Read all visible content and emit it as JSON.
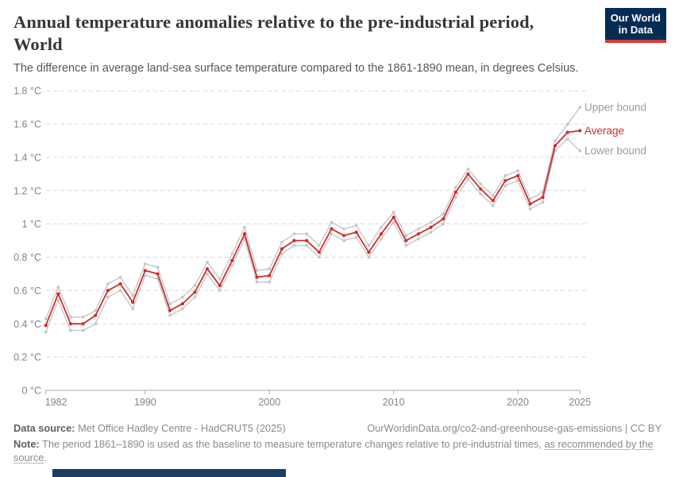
{
  "header": {
    "title_line1": "Annual temperature anomalies relative to the pre-industrial period,",
    "title_line2": "World",
    "subtitle": "The difference in average land-sea surface temperature compared to the 1861-1890 mean, in degrees Celsius.",
    "logo": {
      "line1": "Our World",
      "line2": "in Data"
    }
  },
  "chart_data": {
    "type": "line",
    "title": "Annual temperature anomalies relative to the pre-industrial period, World",
    "unit": "°C",
    "xlim": [
      1982,
      2025
    ],
    "ylim": [
      0,
      1.8
    ],
    "grid": "dashed-horizontal",
    "legend_position": "right-of-line-end",
    "x": [
      1982,
      1983,
      1984,
      1985,
      1986,
      1987,
      1988,
      1989,
      1990,
      1991,
      1992,
      1993,
      1994,
      1995,
      1996,
      1997,
      1998,
      1999,
      2000,
      2001,
      2002,
      2003,
      2004,
      2005,
      2006,
      2007,
      2008,
      2009,
      2010,
      2011,
      2012,
      2013,
      2014,
      2015,
      2016,
      2017,
      2018,
      2019,
      2020,
      2021,
      2022,
      2023,
      2024,
      2025
    ],
    "series": [
      {
        "name": "Upper bound",
        "color": "#c7c7c7",
        "label_color": "#9c9c9c",
        "values": [
          0.43,
          0.62,
          0.44,
          0.44,
          0.48,
          0.64,
          0.68,
          0.57,
          0.76,
          0.74,
          0.52,
          0.56,
          0.63,
          0.77,
          0.67,
          0.82,
          0.98,
          0.72,
          0.73,
          0.89,
          0.94,
          0.94,
          0.87,
          1.01,
          0.97,
          0.99,
          0.87,
          0.98,
          1.07,
          0.93,
          0.97,
          1.01,
          1.06,
          1.22,
          1.33,
          1.24,
          1.17,
          1.29,
          1.32,
          1.15,
          1.19,
          1.5,
          1.6,
          1.7
        ]
      },
      {
        "name": "Average",
        "color": "#cb2e2e",
        "label_color": "#cb2e2e",
        "values": [
          0.39,
          0.58,
          0.4,
          0.4,
          0.45,
          0.6,
          0.64,
          0.53,
          0.72,
          0.7,
          0.48,
          0.52,
          0.59,
          0.73,
          0.63,
          0.78,
          0.94,
          0.68,
          0.69,
          0.85,
          0.9,
          0.9,
          0.83,
          0.97,
          0.93,
          0.95,
          0.83,
          0.94,
          1.04,
          0.9,
          0.94,
          0.98,
          1.03,
          1.19,
          1.3,
          1.21,
          1.14,
          1.26,
          1.29,
          1.12,
          1.16,
          1.47,
          1.55,
          1.56
        ]
      },
      {
        "name": "Lower bound",
        "color": "#c7c7c7",
        "label_color": "#9c9c9c",
        "values": [
          0.35,
          0.54,
          0.36,
          0.36,
          0.4,
          0.56,
          0.6,
          0.49,
          0.69,
          0.67,
          0.45,
          0.49,
          0.56,
          0.7,
          0.6,
          0.75,
          0.91,
          0.65,
          0.65,
          0.82,
          0.87,
          0.87,
          0.8,
          0.94,
          0.9,
          0.92,
          0.8,
          0.91,
          1.01,
          0.87,
          0.91,
          0.95,
          1.0,
          1.16,
          1.27,
          1.18,
          1.11,
          1.23,
          1.26,
          1.09,
          1.13,
          1.44,
          1.51,
          1.44
        ]
      }
    ],
    "axes": {
      "yticks": [
        {
          "value": 0,
          "label": "0 °C"
        },
        {
          "value": 0.2,
          "label": "0.2 °C"
        },
        {
          "value": 0.4,
          "label": "0.4 °C"
        },
        {
          "value": 0.6,
          "label": "0.6 °C"
        },
        {
          "value": 0.8,
          "label": "0.8 °C"
        },
        {
          "value": 1,
          "label": "1 °C"
        },
        {
          "value": 1.2,
          "label": "1.2 °C"
        },
        {
          "value": 1.4,
          "label": "1.4 °C"
        },
        {
          "value": 1.6,
          "label": "1.6 °C"
        },
        {
          "value": 1.8,
          "label": "1.8 °C"
        }
      ],
      "xticks": [
        {
          "value": 1982,
          "label": "1982"
        },
        {
          "value": 1990,
          "label": "1990"
        },
        {
          "value": 2000,
          "label": "2000"
        },
        {
          "value": 2010,
          "label": "2010"
        },
        {
          "value": 2020,
          "label": "2020"
        },
        {
          "value": 2025,
          "label": "2025"
        }
      ]
    }
  },
  "footer": {
    "data_source_label": "Data source:",
    "data_source": "Met Office Hadley Centre - HadCRUT5 (2025)",
    "attribution": "OurWorldinData.org/co2-and-greenhouse-gas-emissions | CC BY",
    "note_label": "Note:",
    "note_text": "The period 1861–1890 is used as the baseline to measure temperature changes relative to pre-industrial times,",
    "note_link": "as recommended by the source",
    "note_suffix": "."
  }
}
